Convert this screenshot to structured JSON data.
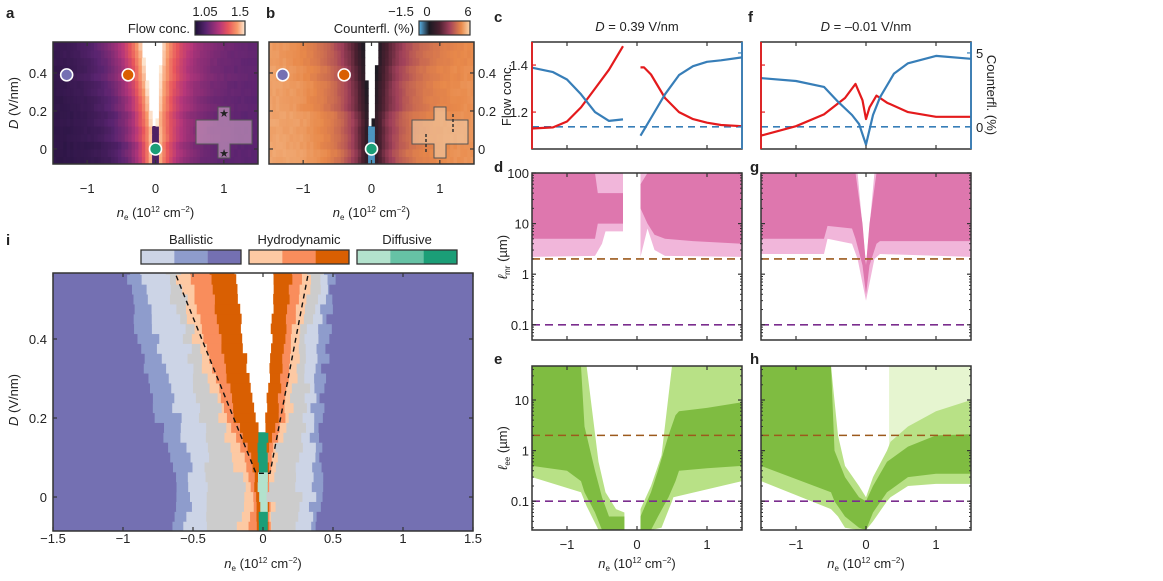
{
  "panel_letters": {
    "a": "a",
    "b": "b",
    "c": "c",
    "d": "d",
    "e": "e",
    "f": "f",
    "g": "g",
    "h": "h",
    "i": "i"
  },
  "labels": {
    "ne": {
      "var": "n",
      "sub": "e",
      "pre": " (10",
      "sup": "12",
      "mid": " cm",
      "sup2": "−2",
      "post": ")"
    },
    "D": {
      "var": "D",
      "rest": " (V/nm)"
    },
    "lmr": {
      "var": "ℓ",
      "sub": "mr",
      "rest": " (µm)"
    },
    "lee": {
      "var": "ℓ",
      "sub": "ee",
      "rest": " (µm)"
    }
  },
  "colors": {
    "flow": "#e41a1c",
    "counterflow": "#377eb8",
    "ref_2um": "#9c5a1c",
    "ref_01um": "#7b2d8e",
    "pink_dark": "#de77ae",
    "pink_light": "#f1b6da",
    "green_dark": "#7fbc41",
    "green_light": "#b8e186",
    "green_pale": "#e6f5d0"
  },
  "chart_data": [
    {
      "panel": "a",
      "type": "heatmap",
      "colorbar_label": "Flow conc.",
      "colorbar_ticks": [
        "1.05",
        "1.5"
      ],
      "clim": [
        1.05,
        1.5
      ],
      "colormap": [
        [
          1.05,
          "#1b1035"
        ],
        [
          1.15,
          "#5a2470"
        ],
        [
          1.27,
          "#b5367a"
        ],
        [
          1.35,
          "#e8565c"
        ],
        [
          1.43,
          "#f79a6a"
        ],
        [
          1.5,
          "#fde9d5"
        ]
      ],
      "xlim": [
        -1.5,
        1.5
      ],
      "ylim": [
        -0.079,
        0.563
      ],
      "xticks": [
        -1,
        0,
        1
      ],
      "xtick_labels": [
        "−1",
        "0",
        "1"
      ],
      "yticks": [
        0,
        0.2,
        0.4
      ],
      "ytick_labels": [
        "0",
        "0.2",
        "0.4"
      ],
      "gap": [
        {
          "D": 0.563,
          "n_min": -0.2,
          "n_max": 0.1
        },
        {
          "D": 0.12,
          "n_min": -0.05,
          "n_max": 0.02
        }
      ],
      "center_column": {
        "n_min": -0.04,
        "n_max": 0.03,
        "value": 1.13
      },
      "far_value_left": 1.08,
      "far_value_right": 1.15,
      "peak_value": 1.5,
      "markers": [
        {
          "n": -1.3,
          "D": 0.39,
          "color": "#7570b3"
        },
        {
          "n": -0.4,
          "D": 0.39,
          "color": "#d95f02"
        },
        {
          "n": 0,
          "D": 0,
          "color": "#1b9e77"
        }
      ]
    },
    {
      "panel": "b",
      "type": "heatmap",
      "colorbar_label": "Counterfl. (%)",
      "colorbar_ticks": [
        "−1.5",
        "0",
        "6"
      ],
      "clim": [
        -1.5,
        6
      ],
      "colormap": [
        [
          -1.5,
          "#5ab4e8"
        ],
        [
          0,
          "#1a1a22"
        ],
        [
          1.5,
          "#4a2030"
        ],
        [
          3,
          "#a0405a"
        ],
        [
          4.7,
          "#e8894a"
        ],
        [
          6,
          "#fcd8b0"
        ]
      ],
      "xlim": [
        -1.5,
        1.5
      ],
      "ylim": [
        -0.079,
        0.563
      ],
      "xticks": [
        -1,
        0,
        1
      ],
      "xtick_labels": [
        "−1",
        "0",
        "1"
      ],
      "yticks": [
        0,
        0.2,
        0.4
      ],
      "ytick_labels": [
        "0",
        "0.2",
        "0.4"
      ],
      "gap": [
        {
          "D": 0.563,
          "n_min": -0.12,
          "n_max": 0.1
        },
        {
          "D": 0.12,
          "n_min": -0.03,
          "n_max": 0.02
        }
      ],
      "center_column": {
        "n_min": -0.04,
        "n_max": 0.03,
        "value": -1.2
      },
      "far_value_left": 5.2,
      "far_value_right": 4.9,
      "peak_value": 0.2,
      "markers": [
        {
          "n": -1.3,
          "D": 0.39,
          "color": "#7570b3"
        },
        {
          "n": -0.4,
          "D": 0.39,
          "color": "#d95f02"
        },
        {
          "n": 0,
          "D": 0,
          "color": "#1b9e77"
        }
      ]
    },
    {
      "panel": "c",
      "type": "line",
      "title": {
        "var": "D",
        "rest": " = 0.39 V/nm"
      },
      "xlim": [
        -1.5,
        1.5
      ],
      "xticks": [
        -1,
        0,
        1
      ],
      "ylabel_left": "Flow conc.",
      "ylim_left": [
        1.043,
        1.498
      ],
      "yticks_left": [
        1.2,
        1.4
      ],
      "ytick_labels_left": [
        "1.2",
        "1.4"
      ],
      "ylim_right": [
        -1.5,
        5.74
      ],
      "yticks_right": [
        0,
        5
      ],
      "ytick_labels_right": [],
      "ref_line_right": 0,
      "series": [
        {
          "axis": "left",
          "x": [
            -1.5,
            -1.2,
            -1.0,
            -0.8,
            -0.6,
            -0.4,
            -0.2,
            null,
            0.05,
            0.1,
            0.2,
            0.4,
            0.6,
            0.8,
            1.0,
            1.2,
            1.5
          ],
          "y": [
            1.13,
            1.135,
            1.16,
            1.22,
            1.3,
            1.38,
            1.48,
            null,
            1.39,
            1.39,
            1.36,
            1.26,
            1.2,
            1.17,
            1.155,
            1.145,
            1.14
          ]
        },
        {
          "axis": "right",
          "x": [
            -1.5,
            -1.2,
            -1.0,
            -0.8,
            -0.6,
            -0.4,
            -0.2,
            null,
            0.05,
            0.2,
            0.4,
            0.6,
            0.8,
            1.0,
            1.2,
            1.5
          ],
          "y": [
            4.0,
            3.7,
            3.2,
            2.2,
            1.0,
            0.4,
            0.5,
            null,
            -0.6,
            0.6,
            2.2,
            3.5,
            4.1,
            4.4,
            4.5,
            4.7
          ]
        }
      ]
    },
    {
      "panel": "f",
      "type": "line",
      "title": {
        "var": "D",
        "rest": " = –0.01 V/nm"
      },
      "xlim": [
        -1.5,
        1.5
      ],
      "xticks": [
        -1,
        0,
        1
      ],
      "ylabel_right": "Counterfl. (%)",
      "ylim_left": [
        1.043,
        1.498
      ],
      "yticks_left": [
        1.2,
        1.4
      ],
      "ytick_labels_left": [],
      "ylim_right": [
        -1.5,
        5.74
      ],
      "yticks_right": [
        0,
        5
      ],
      "ytick_labels_right": [
        "0",
        "5"
      ],
      "ref_line_right": 0,
      "series": [
        {
          "axis": "left",
          "x": [
            -1.5,
            -1.0,
            -0.6,
            -0.3,
            -0.15,
            -0.05,
            0,
            0.05,
            0.15,
            0.3,
            0.6,
            1.0,
            1.5
          ],
          "y": [
            1.1,
            1.14,
            1.19,
            1.26,
            1.32,
            1.25,
            1.17,
            1.22,
            1.27,
            1.24,
            1.2,
            1.18,
            1.18
          ]
        },
        {
          "axis": "right",
          "x": [
            -1.5,
            -1.0,
            -0.6,
            -0.4,
            -0.2,
            -0.1,
            0,
            0.1,
            0.2,
            0.4,
            0.6,
            1.0,
            1.5
          ],
          "y": [
            3.3,
            3.1,
            2.7,
            1.7,
            0.8,
            0.2,
            -1.2,
            0.8,
            2.0,
            3.6,
            4.3,
            4.8,
            4.6
          ]
        }
      ]
    },
    {
      "panel": "d",
      "type": "area",
      "scale": "log",
      "xlim": [
        -1.5,
        1.5
      ],
      "ylim": [
        0.05,
        100
      ],
      "xticks": [
        -1,
        0,
        1
      ],
      "yticks": [
        0.1,
        1,
        10,
        100
      ],
      "ytick_labels": [
        "0.1",
        "1",
        "10",
        "100"
      ],
      "ref_lines": [
        2,
        0.1
      ],
      "bands": [
        {
          "shade": "pink_light",
          "x": [
            -1.5,
            -0.6,
            -0.5,
            -0.45,
            -0.2,
            null,
            0.05,
            0.15,
            0.25,
            0.4,
            1.5
          ],
          "lo": [
            2.2,
            2.3,
            4,
            7,
            7,
            null,
            2.2,
            8,
            3,
            2.3,
            2.2
          ],
          "hi": [
            100,
            100,
            100,
            100,
            100,
            null,
            100,
            100,
            100,
            100,
            100
          ]
        },
        {
          "shade": "pink_dark",
          "x": [
            -1.5,
            -0.6,
            -0.56,
            -0.45,
            -0.2,
            null,
            0.05,
            0.15,
            0.25,
            0.4,
            0.8,
            1.5
          ],
          "lo": [
            5,
            5,
            10,
            10,
            10,
            null,
            20,
            10,
            6,
            5,
            4.5,
            4
          ],
          "hi": [
            100,
            100,
            40,
            40,
            40,
            null,
            60,
            100,
            100,
            100,
            100,
            100
          ]
        }
      ]
    },
    {
      "panel": "g",
      "type": "area",
      "scale": "log",
      "xlim": [
        -1.5,
        1.5
      ],
      "ylim": [
        0.05,
        100
      ],
      "xticks": [
        -1,
        0,
        1
      ],
      "yticks": [
        0.1,
        1,
        10,
        100
      ],
      "ytick_labels": [],
      "ref_lines": [
        2,
        0.1
      ],
      "bands": [
        {
          "shade": "pink_light",
          "x": [
            -1.5,
            -0.6,
            -0.55,
            -0.2,
            -0.12,
            0,
            0.12,
            0.2,
            1.5
          ],
          "lo": [
            2.5,
            2.5,
            5,
            4,
            2,
            0.3,
            2,
            2.5,
            2.2
          ],
          "hi": [
            100,
            100,
            100,
            100,
            100,
            1.5,
            100,
            100,
            100
          ]
        },
        {
          "shade": "pink_dark",
          "x": [
            -1.5,
            -0.6,
            -0.55,
            -0.2,
            -0.15,
            -0.05,
            0,
            0.05,
            0.15,
            0.2,
            1.5
          ],
          "lo": [
            5,
            5,
            9,
            8,
            5,
            1.5,
            0.4,
            1.5,
            4,
            4.5,
            4.5
          ],
          "hi": [
            100,
            100,
            100,
            100,
            100,
            10,
            1.5,
            10,
            100,
            100,
            100
          ]
        }
      ]
    },
    {
      "panel": "e",
      "type": "area",
      "scale": "log",
      "xlim": [
        -1.5,
        1.5
      ],
      "ylim": [
        0.027,
        47
      ],
      "xticks": [
        -1,
        0,
        1
      ],
      "xtick_labels": [
        "−1",
        "0",
        "1"
      ],
      "yticks": [
        0.1,
        1,
        10
      ],
      "ytick_labels": [
        "0.1",
        "1",
        "10"
      ],
      "ref_lines": [
        2,
        0.1
      ],
      "bands": [
        {
          "shade": "green_light",
          "x": [
            -1.5,
            -0.8,
            -0.72,
            -0.55,
            -0.45,
            -0.3,
            -0.18,
            null,
            0.05,
            0.2,
            0.35,
            0.5,
            0.52,
            1.5
          ],
          "lo": [
            0.3,
            0.15,
            0.08,
            0.027,
            0.027,
            0.027,
            0.027,
            null,
            0.027,
            0.027,
            0.03,
            0.1,
            0.12,
            0.25
          ],
          "hi": [
            47,
            47,
            47,
            0.6,
            0.15,
            0.07,
            0.06,
            null,
            0.07,
            0.2,
            0.8,
            47,
            47,
            47
          ]
        },
        {
          "shade": "green_dark",
          "x": [
            -1.5,
            -1.0,
            -0.8,
            -0.75,
            -0.6,
            -0.5,
            -0.4,
            -0.18,
            null,
            0.05,
            0.2,
            0.3,
            0.45,
            0.55,
            0.6,
            1.0,
            1.5
          ],
          "lo": [
            0.5,
            0.4,
            0.25,
            0.15,
            0.06,
            0.027,
            0.027,
            0.027,
            null,
            0.027,
            0.027,
            0.05,
            0.12,
            0.25,
            0.4,
            0.45,
            0.5
          ],
          "hi": [
            47,
            47,
            47,
            3,
            0.4,
            0.12,
            0.05,
            0.05,
            null,
            0.05,
            0.15,
            0.4,
            2,
            5,
            6,
            7,
            9
          ]
        }
      ]
    },
    {
      "panel": "h",
      "type": "area",
      "scale": "log",
      "xlim": [
        -1.5,
        1.5
      ],
      "ylim": [
        0.027,
        47
      ],
      "xticks": [
        -1,
        0,
        1
      ],
      "xtick_labels": [
        "−1",
        "0",
        "1"
      ],
      "yticks": [
        0.1,
        1,
        10
      ],
      "ytick_labels": [],
      "ref_lines": [
        2,
        0.1
      ],
      "bands": [
        {
          "shade": "green_pale",
          "x": [
            0.33,
            0.35,
            1.5
          ],
          "lo": [
            1,
            1.5,
            10
          ],
          "hi": [
            47,
            47,
            47
          ]
        },
        {
          "shade": "green_light",
          "x": [
            -1.5,
            -0.5,
            -0.4,
            -0.3,
            -0.1,
            0,
            0.1,
            0.3,
            0.35,
            0.6,
            1.0,
            1.5
          ],
          "lo": [
            0.25,
            0.07,
            0.05,
            0.03,
            0.027,
            0.027,
            0.04,
            0.1,
            0.12,
            0.2,
            0.22,
            0.22
          ],
          "hi": [
            47,
            47,
            2,
            0.5,
            0.2,
            0.12,
            0.3,
            1,
            1.5,
            3,
            6,
            10
          ]
        },
        {
          "shade": "green_dark",
          "x": [
            -1.5,
            -0.5,
            -0.45,
            -0.3,
            -0.1,
            0,
            0.1,
            0.3,
            0.6,
            1.0,
            1.5
          ],
          "lo": [
            0.5,
            0.15,
            0.1,
            0.05,
            0.03,
            0.027,
            0.06,
            0.15,
            0.3,
            0.35,
            0.35
          ],
          "hi": [
            47,
            47,
            1.0,
            0.3,
            0.12,
            0.1,
            0.2,
            0.6,
            1.2,
            2,
            2.1
          ]
        }
      ]
    },
    {
      "panel": "i",
      "type": "heatmap",
      "xlim": [
        -1.5,
        1.5
      ],
      "ylim": [
        -0.086,
        0.567
      ],
      "xticks": [
        -1.5,
        -1,
        -0.5,
        0,
        0.5,
        1,
        1.5
      ],
      "xtick_labels": [
        "−1.5",
        "−1",
        "−0.5",
        "0",
        "0.5",
        "1",
        "1.5"
      ],
      "yticks": [
        0,
        0.2,
        0.4
      ],
      "ytick_labels": [
        "0",
        "0.2",
        "0.4"
      ],
      "legend": [
        {
          "label": "Ballistic",
          "colors": [
            "#ccd4e6",
            "#8e9ccc",
            "#7470b2"
          ]
        },
        {
          "label": "Hydrodynamic",
          "colors": [
            "#fdc9a3",
            "#f98d5c",
            "#d95f02"
          ]
        },
        {
          "label": "Diffusive",
          "colors": [
            "#b3e2cd",
            "#66c2a5",
            "#1b9e77"
          ]
        }
      ],
      "unclassified_color": "#cccccc",
      "rows": [
        {
          "D": 0.56,
          "left": [
            -0.95,
            -0.85,
            -0.7,
            -0.6,
            -0.52,
            -0.38,
            -0.2
          ],
          "right": [
            0.5,
            0.45,
            0.4,
            0.32,
            0.27,
            0.2,
            0.08
          ],
          "center": "gap"
        },
        {
          "D": 0.4,
          "left": [
            -0.9,
            -0.75,
            -0.55,
            -0.48,
            -0.42,
            -0.3,
            -0.15
          ],
          "right": [
            0.45,
            0.4,
            0.32,
            0.25,
            0.2,
            0.15,
            0.06
          ],
          "center": "gap"
        },
        {
          "D": 0.2,
          "left": [
            -0.75,
            -0.6,
            -0.45,
            -0.3,
            -0.25,
            -0.2,
            -0.05
          ],
          "right": [
            0.42,
            0.35,
            0.3,
            0.2,
            0.15,
            0.1,
            0.02
          ],
          "center": "gap"
        },
        {
          "D": 0.12,
          "left": [
            -0.7,
            -0.55,
            -0.4,
            -0.22,
            -0.15,
            -0.1,
            -0.03
          ],
          "right": [
            0.4,
            0.35,
            0.25,
            0.08,
            0.06,
            0.04,
            0.03
          ],
          "center": "diffusive-dark"
        },
        {
          "D": 0.0,
          "left": [
            -0.6,
            -0.5,
            -0.38,
            -0.12,
            -0.06,
            -0.04,
            -0.03
          ],
          "right": [
            0.42,
            0.35,
            0.25,
            0.05,
            0.04,
            0.035,
            0.03
          ],
          "center": "diffusive-light"
        },
        {
          "D": -0.08,
          "left": [
            -0.65,
            -0.55,
            -0.38,
            -0.17,
            -0.1,
            -0.05,
            -0.02
          ],
          "right": [
            0.4,
            0.35,
            0.25,
            0.08,
            0.05,
            0.03,
            0.02
          ],
          "center": "diffusive-dark"
        }
      ],
      "dashed_boundary": {
        "x": [
          -0.62,
          -0.05,
          0.05,
          0.32
        ],
        "y": [
          0.56,
          0.06,
          0.06,
          0.56
        ]
      }
    }
  ]
}
